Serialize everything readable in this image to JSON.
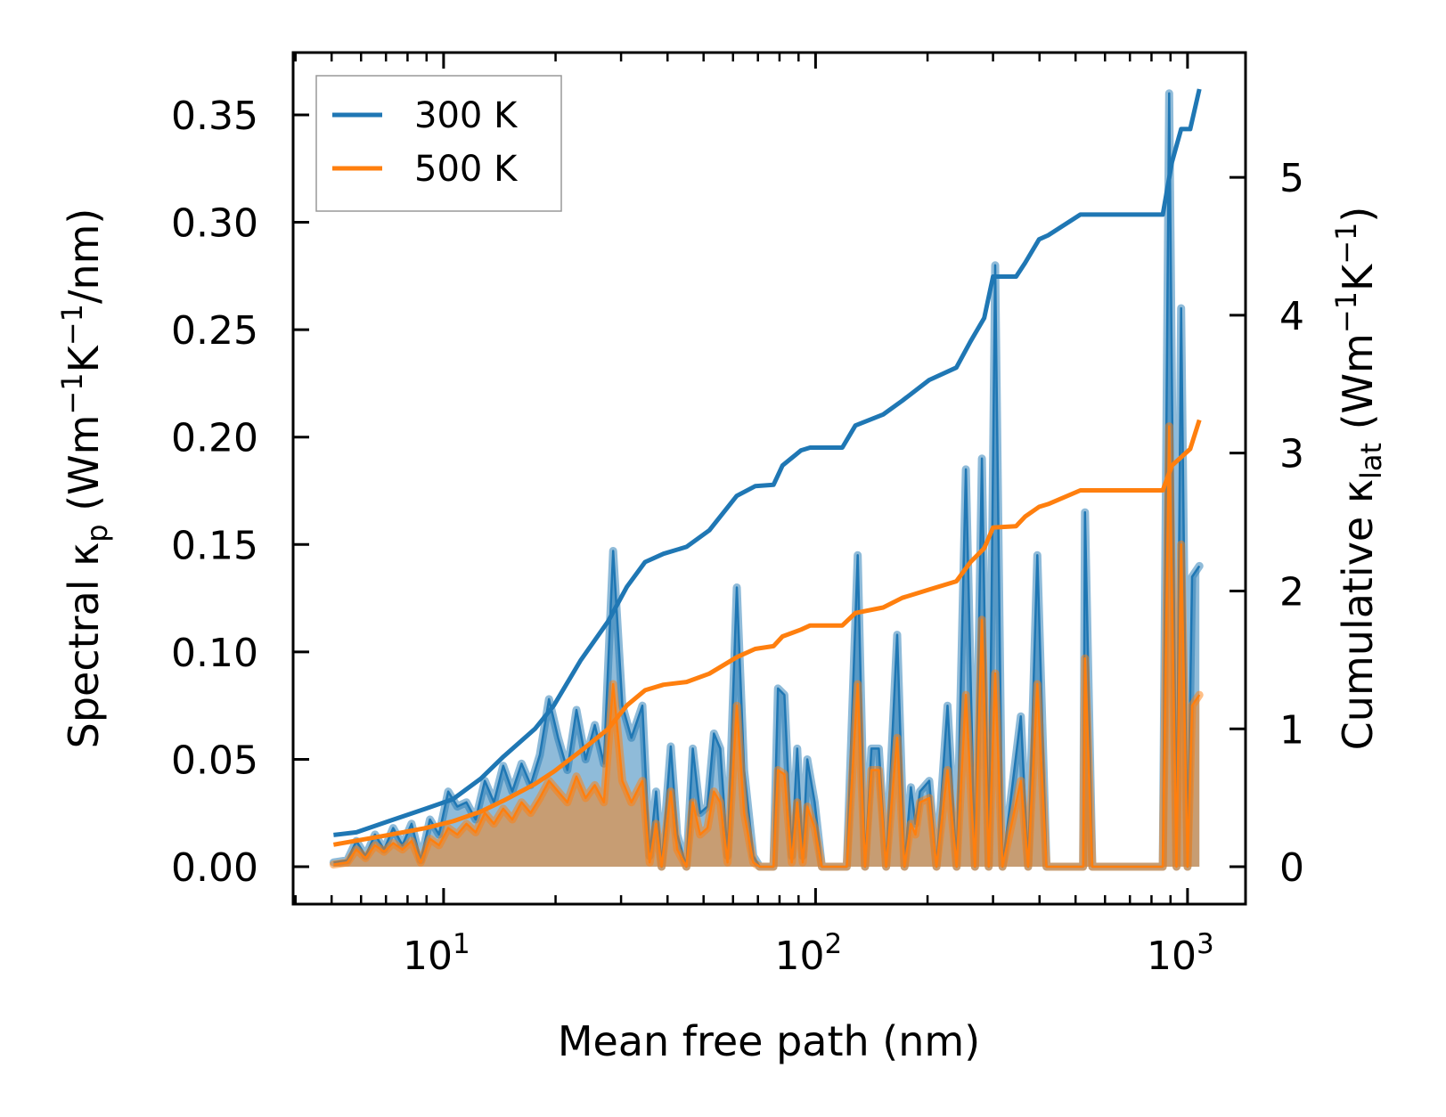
{
  "chart_data": {
    "type": "line",
    "xscale": "log",
    "xlim": [
      3.94,
      1432
    ],
    "ylim_left": [
      -0.0174,
      0.379
    ],
    "ylim_right": [
      -0.271,
      5.905
    ],
    "xlabel": "Mean free path (nm)",
    "ylabel_left": [
      {
        "t": "Spectral κ"
      },
      {
        "t": "p",
        "sub": true
      },
      {
        "t": " (Wm"
      },
      {
        "t": "−1",
        "sup": true
      },
      {
        "t": "K"
      },
      {
        "t": "−1",
        "sup": true
      },
      {
        "t": "/nm)"
      }
    ],
    "ylabel_right": [
      {
        "t": "Cumulative κ"
      },
      {
        "t": "lat",
        "sub": true
      },
      {
        "t": " (Wm"
      },
      {
        "t": "−1",
        "sup": true
      },
      {
        "t": "K"
      },
      {
        "t": "−1",
        "sup": true
      },
      {
        "t": ")"
      }
    ],
    "xticks": [
      {
        "value": 10,
        "base": "10",
        "exp": "1"
      },
      {
        "value": 100,
        "base": "10",
        "exp": "2"
      },
      {
        "value": 1000,
        "base": "10",
        "exp": "3"
      }
    ],
    "yticks_left": [
      {
        "value": 0,
        "label": "0.00"
      },
      {
        "value": 0.05,
        "label": "0.05"
      },
      {
        "value": 0.1,
        "label": "0.10"
      },
      {
        "value": 0.15,
        "label": "0.15"
      },
      {
        "value": 0.2,
        "label": "0.20"
      },
      {
        "value": 0.25,
        "label": "0.25"
      },
      {
        "value": 0.3,
        "label": "0.30"
      },
      {
        "value": 0.35,
        "label": "0.35"
      }
    ],
    "yticks_right": [
      {
        "value": 0,
        "label": "0"
      },
      {
        "value": 1,
        "label": "1"
      },
      {
        "value": 2,
        "label": "2"
      },
      {
        "value": 3,
        "label": "3"
      },
      {
        "value": 4,
        "label": "4"
      },
      {
        "value": 5,
        "label": "5"
      }
    ],
    "legend": {
      "placement": "top-left",
      "entries": [
        {
          "label": "300 K",
          "color": "#1f77b4"
        },
        {
          "label": "500 K",
          "color": "#ff7f0e"
        }
      ]
    },
    "colors": {
      "300K": "#1f77b4",
      "500K": "#ff7f0e"
    },
    "spectral_columns": [
      "mfp_nm",
      "kappa_300K",
      "kappa_500K"
    ],
    "spectral": [
      [
        5.06,
        0.002,
        0.001
      ],
      [
        5.51,
        0.003,
        0.002
      ],
      [
        5.83,
        0.012,
        0.008
      ],
      [
        6.17,
        0.005,
        0.004
      ],
      [
        6.54,
        0.015,
        0.01
      ],
      [
        6.92,
        0.008,
        0.007
      ],
      [
        7.32,
        0.018,
        0.011
      ],
      [
        7.75,
        0.01,
        0.008
      ],
      [
        8.2,
        0.02,
        0.012
      ],
      [
        8.68,
        0.003,
        0.002
      ],
      [
        9.19,
        0.022,
        0.013
      ],
      [
        9.72,
        0.015,
        0.01
      ],
      [
        10.29,
        0.035,
        0.018
      ],
      [
        10.89,
        0.028,
        0.015
      ],
      [
        11.52,
        0.03,
        0.02
      ],
      [
        12.2,
        0.022,
        0.016
      ],
      [
        12.91,
        0.04,
        0.025
      ],
      [
        13.66,
        0.03,
        0.02
      ],
      [
        14.46,
        0.047,
        0.027
      ],
      [
        15.3,
        0.035,
        0.022
      ],
      [
        16.2,
        0.048,
        0.03
      ],
      [
        17.14,
        0.038,
        0.025
      ],
      [
        18.14,
        0.052,
        0.032
      ],
      [
        19.2,
        0.078,
        0.04
      ],
      [
        20.32,
        0.06,
        0.035
      ],
      [
        21.51,
        0.045,
        0.03
      ],
      [
        22.76,
        0.073,
        0.042
      ],
      [
        24.09,
        0.05,
        0.032
      ],
      [
        25.5,
        0.066,
        0.038
      ],
      [
        26.98,
        0.048,
        0.03
      ],
      [
        28.56,
        0.147,
        0.085
      ],
      [
        30.23,
        0.075,
        0.04
      ],
      [
        31.99,
        0.06,
        0.03
      ],
      [
        34.23,
        0.075,
        0.04
      ],
      [
        35.82,
        0.005,
        0.002
      ],
      [
        37.27,
        0.035,
        0.02
      ],
      [
        38.56,
        0.0,
        0.0
      ],
      [
        40.81,
        0.056,
        0.035
      ],
      [
        42.47,
        0.015,
        0.008
      ],
      [
        44.95,
        0.0,
        0.0
      ],
      [
        46.77,
        0.055,
        0.03
      ],
      [
        48.94,
        0.025,
        0.015
      ],
      [
        51.21,
        0.028,
        0.018
      ],
      [
        53.29,
        0.062,
        0.035
      ],
      [
        55.44,
        0.055,
        0.03
      ],
      [
        58.01,
        0.005,
        0.002
      ],
      [
        61.41,
        0.13,
        0.075
      ],
      [
        64.26,
        0.045,
        0.025
      ],
      [
        68.01,
        0.005,
        0.002
      ],
      [
        70.76,
        0.0,
        0.0
      ],
      [
        77.05,
        0.0,
        0.0
      ],
      [
        79.26,
        0.083,
        0.045
      ],
      [
        82.47,
        0.08,
        0.043
      ],
      [
        86.3,
        0.005,
        0.002
      ],
      [
        89.27,
        0.055,
        0.03
      ],
      [
        92.35,
        0.005,
        0.002
      ],
      [
        95.02,
        0.05,
        0.028
      ],
      [
        99.43,
        0.03,
        0.018
      ],
      [
        104.0,
        0.0,
        0.0
      ],
      [
        121.3,
        0.0,
        0.0
      ],
      [
        129.8,
        0.145,
        0.085
      ],
      [
        135.8,
        0.0,
        0.0
      ],
      [
        141.3,
        0.055,
        0.045
      ],
      [
        147.9,
        0.055,
        0.045
      ],
      [
        154.8,
        0.0,
        0.0
      ],
      [
        165.7,
        0.108,
        0.06
      ],
      [
        173.4,
        0.0,
        0.0
      ],
      [
        180.4,
        0.037,
        0.02
      ],
      [
        185.6,
        0.02,
        0.015
      ],
      [
        190.9,
        0.035,
        0.03
      ],
      [
        202.1,
        0.04,
        0.032
      ],
      [
        211.4,
        0.0,
        0.0
      ],
      [
        226.3,
        0.075,
        0.045
      ],
      [
        239.5,
        0.0,
        0.0
      ],
      [
        253.5,
        0.185,
        0.08
      ],
      [
        268.3,
        0.0,
        0.0
      ],
      [
        280.0,
        0.19,
        0.115
      ],
      [
        292.0,
        0.0,
        0.0
      ],
      [
        304.0,
        0.28,
        0.09
      ],
      [
        318.1,
        0.0,
        0.0
      ],
      [
        356.3,
        0.07,
        0.04
      ],
      [
        372.8,
        0.0,
        0.0
      ],
      [
        394.6,
        0.145,
        0.085
      ],
      [
        417.6,
        0.0,
        0.0
      ],
      [
        524.0,
        0.0,
        0.0
      ],
      [
        530.0,
        0.165,
        0.097
      ],
      [
        554.6,
        0.0,
        0.0
      ],
      [
        858.1,
        0.0,
        0.0
      ],
      [
        892.7,
        0.36,
        0.205
      ],
      [
        934.1,
        0.0,
        0.0
      ],
      [
        961.1,
        0.26,
        0.15
      ],
      [
        1000,
        0.0,
        0.0
      ],
      [
        1028.7,
        0.135,
        0.075
      ],
      [
        1076,
        0.14,
        0.08
      ]
    ],
    "cumulative_columns": [
      "mfp_nm",
      "kappa_cum"
    ],
    "cumulative_300K": [
      [
        5.06,
        0.23
      ],
      [
        5.83,
        0.25
      ],
      [
        7.11,
        0.33
      ],
      [
        8.93,
        0.42
      ],
      [
        10.6,
        0.49
      ],
      [
        12.6,
        0.64
      ],
      [
        14.5,
        0.8
      ],
      [
        17.6,
        1.0
      ],
      [
        19.8,
        1.17
      ],
      [
        23.4,
        1.5
      ],
      [
        27.7,
        1.78
      ],
      [
        31.1,
        2.03
      ],
      [
        34.8,
        2.21
      ],
      [
        39.0,
        2.27
      ],
      [
        45.0,
        2.32
      ],
      [
        51.8,
        2.44
      ],
      [
        61.4,
        2.69
      ],
      [
        68.8,
        2.76
      ],
      [
        77.1,
        2.77
      ],
      [
        81.5,
        2.91
      ],
      [
        91.4,
        3.02
      ],
      [
        96.7,
        3.04
      ],
      [
        118,
        3.04
      ],
      [
        128,
        3.2
      ],
      [
        152,
        3.28
      ],
      [
        171,
        3.38
      ],
      [
        202,
        3.53
      ],
      [
        239,
        3.62
      ],
      [
        261,
        3.81
      ],
      [
        284,
        3.98
      ],
      [
        300,
        4.28
      ],
      [
        346,
        4.28
      ],
      [
        366,
        4.38
      ],
      [
        399,
        4.55
      ],
      [
        422,
        4.58
      ],
      [
        515,
        4.73
      ],
      [
        858,
        4.73
      ],
      [
        908,
        5.11
      ],
      [
        961,
        5.35
      ],
      [
        1017,
        5.35
      ],
      [
        1076,
        5.64
      ]
    ],
    "cumulative_500K": [
      [
        5.06,
        0.16
      ],
      [
        7.11,
        0.23
      ],
      [
        8.93,
        0.28
      ],
      [
        10.6,
        0.33
      ],
      [
        12.6,
        0.4
      ],
      [
        14.5,
        0.48
      ],
      [
        17.6,
        0.6
      ],
      [
        19.8,
        0.69
      ],
      [
        23.4,
        0.84
      ],
      [
        27.7,
        1.0
      ],
      [
        31.1,
        1.17
      ],
      [
        34.8,
        1.28
      ],
      [
        39.0,
        1.32
      ],
      [
        45.0,
        1.34
      ],
      [
        51.8,
        1.4
      ],
      [
        61.4,
        1.52
      ],
      [
        68.8,
        1.58
      ],
      [
        77.1,
        1.6
      ],
      [
        81.5,
        1.67
      ],
      [
        91.4,
        1.72
      ],
      [
        96.7,
        1.75
      ],
      [
        118,
        1.75
      ],
      [
        128,
        1.84
      ],
      [
        152,
        1.88
      ],
      [
        171,
        1.95
      ],
      [
        202,
        2.01
      ],
      [
        239,
        2.07
      ],
      [
        261,
        2.21
      ],
      [
        284,
        2.31
      ],
      [
        300,
        2.46
      ],
      [
        346,
        2.47
      ],
      [
        366,
        2.54
      ],
      [
        399,
        2.61
      ],
      [
        422,
        2.63
      ],
      [
        515,
        2.73
      ],
      [
        858,
        2.73
      ],
      [
        908,
        2.91
      ],
      [
        961,
        2.97
      ],
      [
        1017,
        3.03
      ],
      [
        1076,
        3.24
      ]
    ]
  }
}
